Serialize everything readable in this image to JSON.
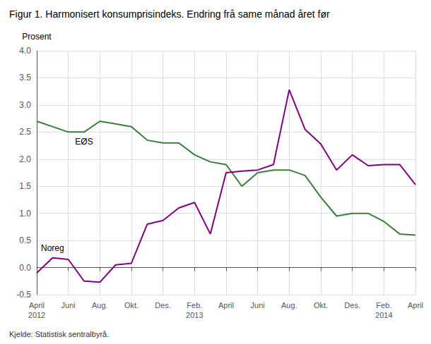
{
  "chart_data": {
    "type": "line",
    "title": "Figur 1. Harmonisert konsumprisindeks. Endring frå same månad året før",
    "ylabel": "Prosent",
    "source": "Kjelde: Statistisk sentralbyrå.",
    "categories": [
      "April\n2012",
      null,
      "Juni",
      null,
      "Aug.",
      null,
      "Okt.",
      null,
      "Des.",
      null,
      "Feb.\n2013",
      null,
      "April",
      null,
      "Juni",
      null,
      "Aug.",
      null,
      "Okt.",
      null,
      "Des.",
      null,
      "Feb.\n2014",
      null,
      "April"
    ],
    "series": [
      {
        "name": "EØS",
        "color": "#3a7d3a",
        "values": [
          2.7,
          2.6,
          2.5,
          2.5,
          2.7,
          2.65,
          2.6,
          2.35,
          2.3,
          2.3,
          2.08,
          1.95,
          1.9,
          1.5,
          1.75,
          1.8,
          1.8,
          1.7,
          1.3,
          0.95,
          1.0,
          1.0,
          0.85,
          0.62,
          0.6
        ]
      },
      {
        "name": "Noreg",
        "color": "#800080",
        "values": [
          -0.1,
          0.18,
          0.15,
          -0.25,
          -0.27,
          0.05,
          0.08,
          0.8,
          0.87,
          1.1,
          1.2,
          0.62,
          1.75,
          1.78,
          1.8,
          1.9,
          3.28,
          2.55,
          2.28,
          1.8,
          2.08,
          1.88,
          1.9,
          1.9,
          1.53
        ]
      }
    ],
    "ylim": [
      -0.5,
      4.0
    ],
    "yticks": [
      -0.5,
      {
        "value": 0.0,
        "label": "0.0"
      },
      0.5,
      {
        "value": 1.0,
        "label": "1.0"
      },
      1.5,
      {
        "value": 2.0,
        "label": "2.0"
      },
      2.5,
      {
        "value": 3.0,
        "label": "3.0"
      },
      3.5,
      {
        "value": 4.0,
        "label": "4.0"
      }
    ],
    "grid": true
  }
}
